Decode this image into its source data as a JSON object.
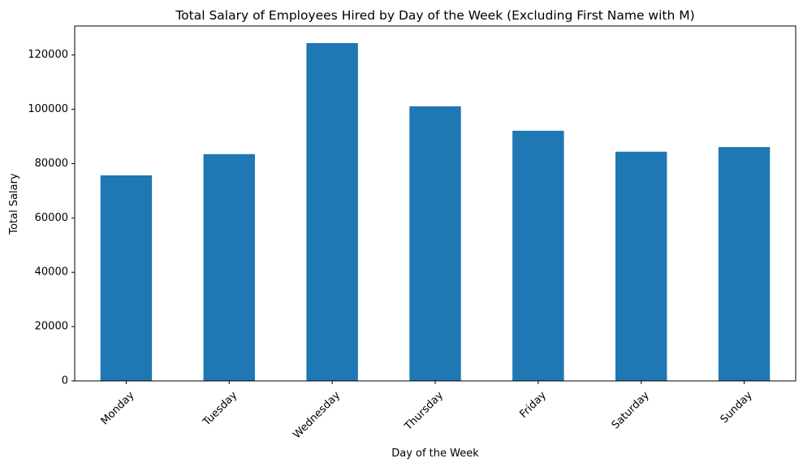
{
  "chart_data": {
    "type": "bar",
    "title": "Total Salary of Employees Hired by Day of the Week (Excluding First Name with M)",
    "xlabel": "Day of the Week",
    "ylabel": "Total Salary",
    "categories": [
      "Monday",
      "Tuesday",
      "Wednesday",
      "Thursday",
      "Friday",
      "Saturday",
      "Sunday"
    ],
    "values": [
      75700,
      83500,
      124400,
      101100,
      92100,
      84400,
      86100
    ],
    "ylim": [
      0,
      130680
    ],
    "yticks": [
      0,
      20000,
      40000,
      60000,
      80000,
      100000,
      120000
    ],
    "ytick_labels": [
      "0",
      "20000",
      "40000",
      "60000",
      "80000",
      "100000",
      "120000"
    ],
    "bar_color": "#1f77b4",
    "grid": false,
    "legend": "none"
  }
}
